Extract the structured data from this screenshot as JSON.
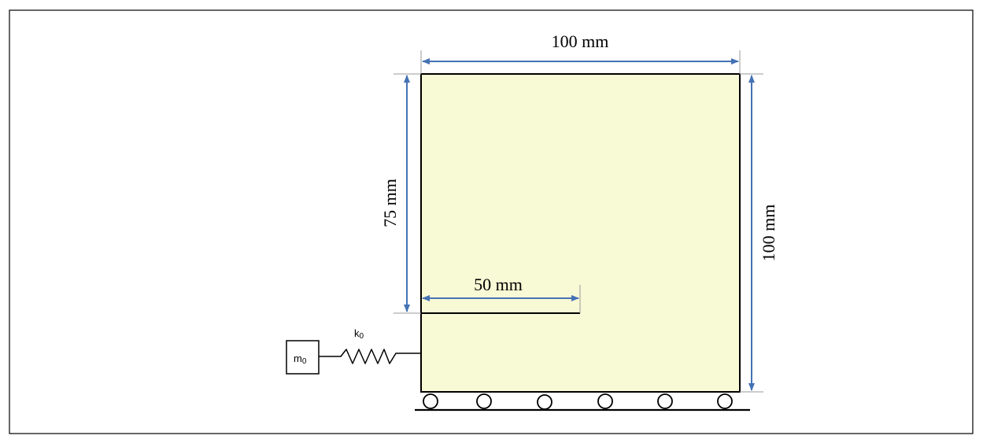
{
  "diagram": {
    "dim_top": "100 mm",
    "dim_right": "100 mm",
    "dim_left": "75 mm",
    "dim_crack": "50 mm",
    "spring_label": "k",
    "spring_label_sub": "0",
    "mass_label": "m",
    "mass_label_sub": "0"
  },
  "colors": {
    "plate_fill": "#f8f9d5",
    "dimension_arrow": "#4472b4",
    "extension_line": "#9a9a9a",
    "outline": "#000000"
  }
}
